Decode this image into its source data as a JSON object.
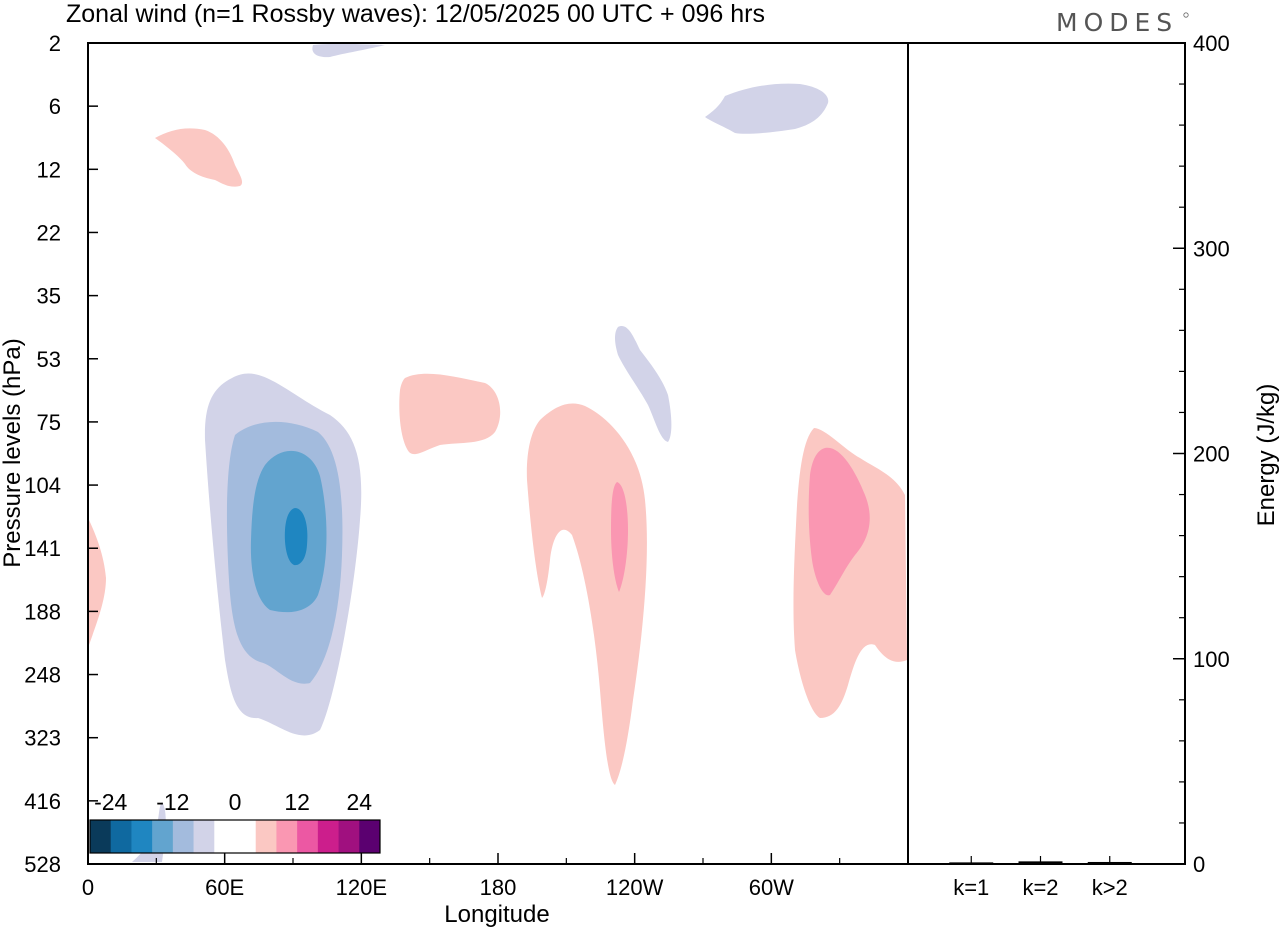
{
  "chart_data": [
    {
      "type": "heatmap",
      "title": "Zonal wind (n=1 Rossby waves):  12/05/2025  00 UTC  + 096 hrs",
      "xlabel": "Longitude",
      "ylabel": "Pressure levels (hPa)",
      "x_ticks": [
        "0",
        "60E",
        "120E",
        "180",
        "120W",
        "60W"
      ],
      "x_range_deg": [
        0,
        360
      ],
      "y_ticks": [
        "2",
        "6",
        "12",
        "22",
        "35",
        "53",
        "75",
        "104",
        "141",
        "188",
        "248",
        "323",
        "416",
        "528"
      ],
      "colorbar": {
        "tick_labels": [
          "-24",
          "-12",
          "0",
          "12",
          "24"
        ],
        "colors": [
          "#0a3a5a",
          "#0f69a0",
          "#1f86c1",
          "#62a4cf",
          "#a3bbdd",
          "#d2d3e8",
          "#ffffff",
          "#ffffff",
          "#fbc8c3",
          "#fa97b2",
          "#ec58a3",
          "#cc1e8c",
          "#a0107f",
          "#5b0070"
        ]
      },
      "contours": [
        {
          "level": "-4",
          "color": "#d2d3e8",
          "region": "32E-120E, 60-330 hPa"
        },
        {
          "level": "-8",
          "color": "#a3bbdd",
          "region": "60E-110E, 80-270 hPa"
        },
        {
          "level": "-12",
          "color": "#62a4cf",
          "region": "70E-110E, 110-210 hPa"
        },
        {
          "level": "-16",
          "color": "#1f86c1",
          "region": "87E-97E, 125-165 hPa"
        },
        {
          "level": "4",
          "color": "#fbc8c3",
          "region": "140E-180, 58-100 hPa"
        },
        {
          "level": "4",
          "color": "#fbc8c3",
          "region": "165W-115W, 80-440 hPa"
        },
        {
          "level": "4",
          "color": "#fbc8c3",
          "region": "80W-0, 80-360 hPa"
        },
        {
          "level": "8",
          "color": "#fa97b2",
          "region": "125W-120W, 105-180 hPa"
        },
        {
          "level": "8",
          "color": "#fa97b2",
          "region": "65W-45W, 110-185 hPa"
        }
      ]
    },
    {
      "type": "bar",
      "ylabel": "Energy (J/kg)",
      "categories": [
        "k=1",
        "k=2",
        "k>2"
      ],
      "values": [
        0.3,
        0.8,
        0.5
      ],
      "ylim": [
        0,
        400
      ],
      "y_ticks": [
        "0",
        "100",
        "200",
        "300",
        "400"
      ]
    }
  ],
  "logo_text": "MODES"
}
